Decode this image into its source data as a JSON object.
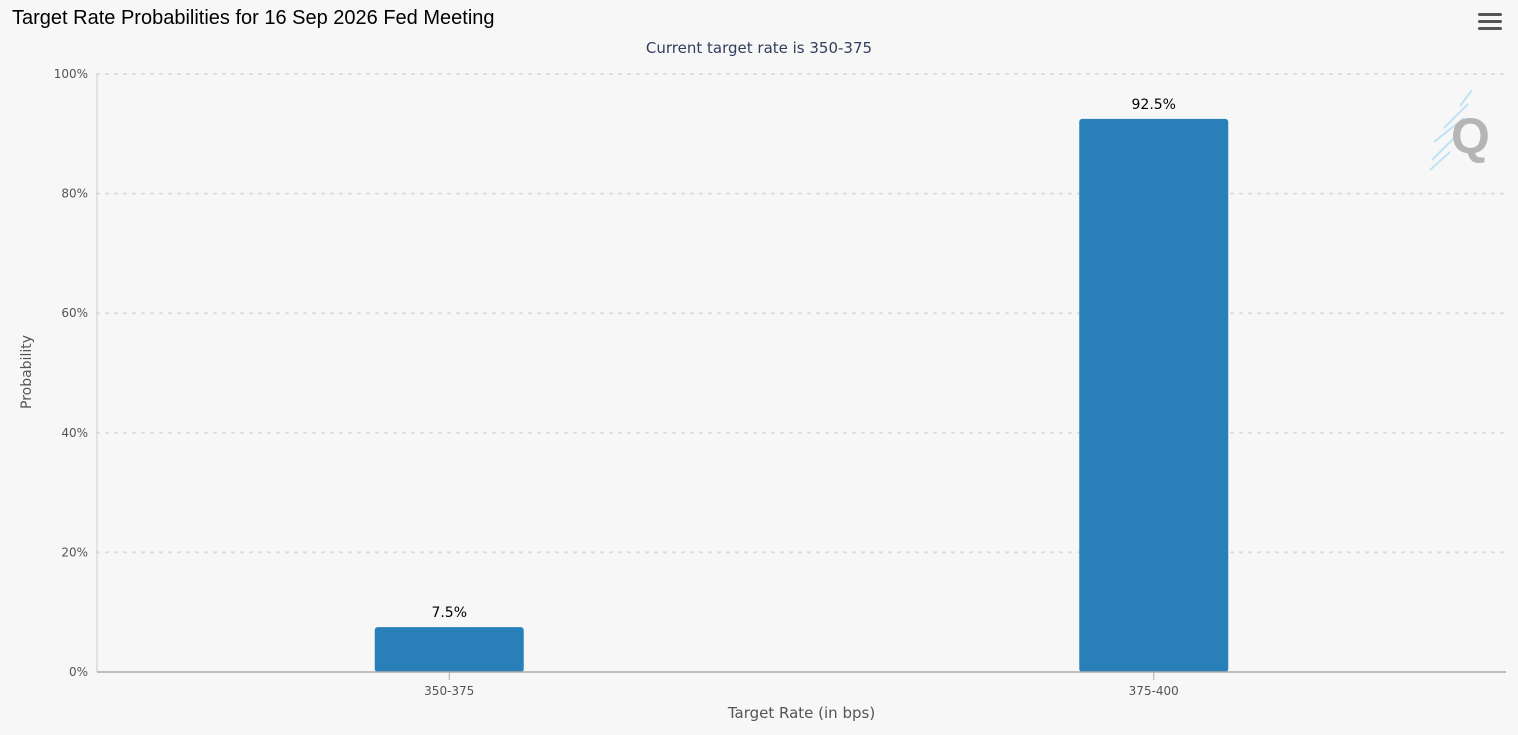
{
  "chart_data": {
    "type": "bar",
    "title": "Target Rate Probabilities for 16 Sep 2026 Fed Meeting",
    "subtitle": "Current target rate is 350-375",
    "xlabel": "Target Rate (in bps)",
    "ylabel": "Probability",
    "categories": [
      "350-375",
      "375-400"
    ],
    "values": [
      7.5,
      92.5
    ],
    "data_labels": [
      "7.5%",
      "92.5%"
    ],
    "ylim": [
      0,
      100
    ],
    "yticks": [
      "0%",
      "20%",
      "40%",
      "60%",
      "80%",
      "100%"
    ],
    "grid": true,
    "bar_color": "#2980b9"
  },
  "toolbar": {
    "menu_icon": "hamburger-menu-icon"
  },
  "watermark": {
    "logo_icon": "q-logo-icon",
    "letter": "Q"
  }
}
